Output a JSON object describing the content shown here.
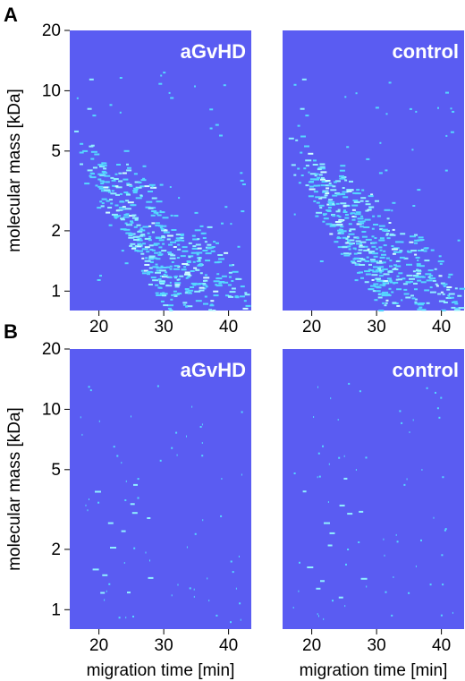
{
  "figure": {
    "panel_letters": [
      "A",
      "B"
    ],
    "background_color": "#5a5cf2",
    "peak_colors": [
      "#55d7ff",
      "#8ff0ff",
      "#cfffff"
    ]
  },
  "chart_data": [
    {
      "type": "heatmap",
      "panel": "A",
      "title": "aGvHD",
      "xlabel": "",
      "ylabel": "molecular mass [kDa]",
      "xticks": [
        20,
        30,
        40
      ],
      "yticks": [
        1,
        2,
        5,
        10,
        20
      ],
      "yscale": "log",
      "xlim": [
        15.5,
        43.5
      ],
      "ylim": [
        0.8,
        20
      ],
      "peak_density": "dense"
    },
    {
      "type": "heatmap",
      "panel": "A",
      "title": "control",
      "xlabel": "",
      "ylabel": "",
      "xticks": [
        20,
        30,
        40
      ],
      "yticks": [],
      "yscale": "log",
      "xlim": [
        15.5,
        43.5
      ],
      "ylim": [
        0.8,
        20
      ],
      "peak_density": "dense"
    },
    {
      "type": "heatmap",
      "panel": "B",
      "title": "aGvHD",
      "xlabel": "migration time [min]",
      "ylabel": "molecular mass [kDa]",
      "xticks": [
        20,
        30,
        40
      ],
      "yticks": [
        1,
        2,
        5,
        10,
        20
      ],
      "yscale": "log",
      "xlim": [
        15.5,
        43.5
      ],
      "ylim": [
        0.8,
        20
      ],
      "peak_density": "sparse"
    },
    {
      "type": "heatmap",
      "panel": "B",
      "title": "control",
      "xlabel": "migration time [min]",
      "ylabel": "",
      "xticks": [
        20,
        30,
        40
      ],
      "yticks": [],
      "yscale": "log",
      "xlim": [
        15.5,
        43.5
      ],
      "ylim": [
        0.8,
        20
      ],
      "peak_density": "sparse"
    }
  ]
}
